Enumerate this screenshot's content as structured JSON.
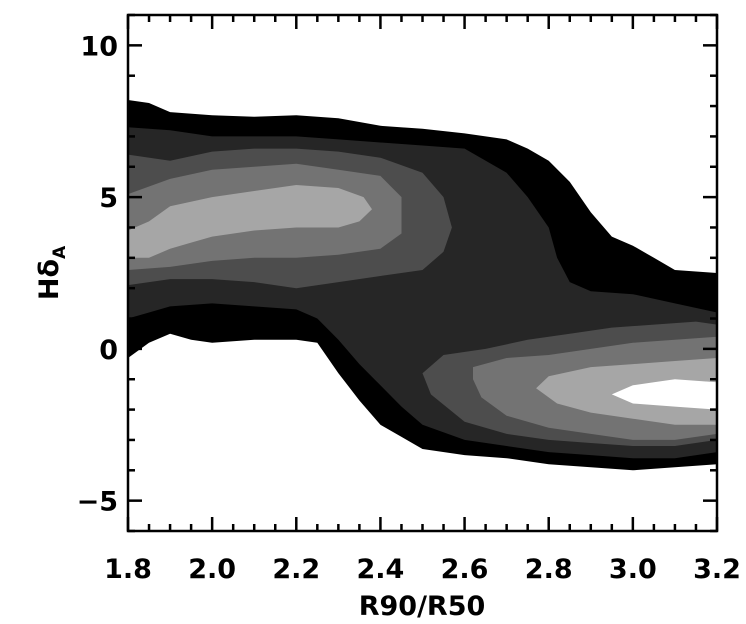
{
  "chart_data": {
    "type": "contour",
    "xlabel": "R90/R50",
    "ylabel": "Hδ",
    "ylabel_subscript": "A",
    "xlim": [
      1.8,
      3.2
    ],
    "ylim": [
      -6,
      11
    ],
    "x_ticks": [
      1.8,
      2.0,
      2.2,
      2.4,
      2.6,
      2.8,
      3.0,
      3.2
    ],
    "x_tick_labels": [
      "1.8",
      "2.0",
      "2.2",
      "2.4",
      "2.6",
      "2.8",
      "3.0",
      "3.2"
    ],
    "y_ticks": [
      -5,
      0,
      5,
      10
    ],
    "y_tick_labels": [
      "−5",
      "0",
      "5",
      "10"
    ],
    "levels": [
      {
        "level": 1,
        "color": "#000000",
        "polygon": [
          [
            1.8,
            8.2
          ],
          [
            1.85,
            8.1
          ],
          [
            1.9,
            7.8
          ],
          [
            2.0,
            7.7
          ],
          [
            2.1,
            7.65
          ],
          [
            2.2,
            7.7
          ],
          [
            2.3,
            7.6
          ],
          [
            2.4,
            7.35
          ],
          [
            2.5,
            7.25
          ],
          [
            2.6,
            7.1
          ],
          [
            2.7,
            6.9
          ],
          [
            2.75,
            6.6
          ],
          [
            2.8,
            6.2
          ],
          [
            2.85,
            5.5
          ],
          [
            2.9,
            4.5
          ],
          [
            2.95,
            3.7
          ],
          [
            3.0,
            3.4
          ],
          [
            3.05,
            3.0
          ],
          [
            3.1,
            2.6
          ],
          [
            3.2,
            2.5
          ],
          [
            3.2,
            -3.8
          ],
          [
            3.1,
            -3.9
          ],
          [
            3.0,
            -4.0
          ],
          [
            2.9,
            -3.9
          ],
          [
            2.8,
            -3.8
          ],
          [
            2.7,
            -3.6
          ],
          [
            2.6,
            -3.5
          ],
          [
            2.5,
            -3.3
          ],
          [
            2.45,
            -2.9
          ],
          [
            2.4,
            -2.5
          ],
          [
            2.35,
            -1.7
          ],
          [
            2.3,
            -0.8
          ],
          [
            2.25,
            0.2
          ],
          [
            2.2,
            0.3
          ],
          [
            2.1,
            0.3
          ],
          [
            2.0,
            0.2
          ],
          [
            1.95,
            0.3
          ],
          [
            1.9,
            0.5
          ],
          [
            1.85,
            0.2
          ],
          [
            1.8,
            -0.3
          ]
        ]
      },
      {
        "level": 2,
        "color": "#262626",
        "polygon": [
          [
            1.8,
            7.3
          ],
          [
            1.9,
            7.2
          ],
          [
            2.0,
            7.0
          ],
          [
            2.1,
            7.0
          ],
          [
            2.2,
            7.0
          ],
          [
            2.3,
            6.9
          ],
          [
            2.4,
            6.8
          ],
          [
            2.5,
            6.7
          ],
          [
            2.6,
            6.6
          ],
          [
            2.7,
            5.8
          ],
          [
            2.75,
            5.0
          ],
          [
            2.8,
            4.0
          ],
          [
            2.82,
            3.0
          ],
          [
            2.85,
            2.2
          ],
          [
            2.9,
            1.9
          ],
          [
            3.0,
            1.8
          ],
          [
            3.1,
            1.5
          ],
          [
            3.2,
            1.2
          ],
          [
            3.2,
            -3.4
          ],
          [
            3.1,
            -3.6
          ],
          [
            3.0,
            -3.6
          ],
          [
            2.9,
            -3.5
          ],
          [
            2.8,
            -3.4
          ],
          [
            2.7,
            -3.2
          ],
          [
            2.6,
            -3.0
          ],
          [
            2.5,
            -2.5
          ],
          [
            2.45,
            -1.9
          ],
          [
            2.4,
            -1.2
          ],
          [
            2.35,
            -0.5
          ],
          [
            2.3,
            0.3
          ],
          [
            2.25,
            1.0
          ],
          [
            2.2,
            1.3
          ],
          [
            2.1,
            1.4
          ],
          [
            2.0,
            1.5
          ],
          [
            1.9,
            1.4
          ],
          [
            1.85,
            1.2
          ],
          [
            1.8,
            1.0
          ]
        ]
      },
      {
        "level": 3,
        "color": "#4d4d4d",
        "polygon": [
          [
            1.8,
            6.4
          ],
          [
            1.9,
            6.2
          ],
          [
            2.0,
            6.5
          ],
          [
            2.1,
            6.6
          ],
          [
            2.2,
            6.6
          ],
          [
            2.3,
            6.5
          ],
          [
            2.4,
            6.3
          ],
          [
            2.5,
            5.8
          ],
          [
            2.55,
            5.0
          ],
          [
            2.57,
            4.0
          ],
          [
            2.55,
            3.2
          ],
          [
            2.5,
            2.6
          ],
          [
            2.4,
            2.4
          ],
          [
            2.3,
            2.2
          ],
          [
            2.2,
            2.0
          ],
          [
            2.1,
            2.2
          ],
          [
            2.0,
            2.3
          ],
          [
            1.9,
            2.3
          ],
          [
            1.8,
            2.1
          ]
        ]
      },
      {
        "level": 3,
        "color": "#4d4d4d",
        "polygon": [
          [
            2.55,
            -0.2
          ],
          [
            2.65,
            0.0
          ],
          [
            2.75,
            0.3
          ],
          [
            2.85,
            0.5
          ],
          [
            2.95,
            0.7
          ],
          [
            3.05,
            0.8
          ],
          [
            3.15,
            0.9
          ],
          [
            3.2,
            0.8
          ],
          [
            3.2,
            -3.0
          ],
          [
            3.1,
            -3.2
          ],
          [
            3.0,
            -3.2
          ],
          [
            2.9,
            -3.1
          ],
          [
            2.8,
            -3.0
          ],
          [
            2.7,
            -2.8
          ],
          [
            2.6,
            -2.4
          ],
          [
            2.52,
            -1.5
          ],
          [
            2.5,
            -0.8
          ]
        ]
      },
      {
        "level": 4,
        "color": "#737373",
        "polygon": [
          [
            1.8,
            5.1
          ],
          [
            1.9,
            5.6
          ],
          [
            2.0,
            5.9
          ],
          [
            2.1,
            6.0
          ],
          [
            2.2,
            6.1
          ],
          [
            2.3,
            5.9
          ],
          [
            2.4,
            5.7
          ],
          [
            2.45,
            5.0
          ],
          [
            2.45,
            3.8
          ],
          [
            2.4,
            3.3
          ],
          [
            2.3,
            3.1
          ],
          [
            2.2,
            3.0
          ],
          [
            2.1,
            3.0
          ],
          [
            2.0,
            2.9
          ],
          [
            1.9,
            2.7
          ],
          [
            1.8,
            2.6
          ]
        ]
      },
      {
        "level": 4,
        "color": "#737373",
        "polygon": [
          [
            2.62,
            -0.6
          ],
          [
            2.7,
            -0.3
          ],
          [
            2.8,
            -0.2
          ],
          [
            2.9,
            0.0
          ],
          [
            3.0,
            0.2
          ],
          [
            3.1,
            0.3
          ],
          [
            3.2,
            0.4
          ],
          [
            3.2,
            -2.8
          ],
          [
            3.1,
            -3.0
          ],
          [
            3.0,
            -3.0
          ],
          [
            2.9,
            -2.8
          ],
          [
            2.8,
            -2.6
          ],
          [
            2.7,
            -2.2
          ],
          [
            2.64,
            -1.6
          ],
          [
            2.62,
            -1.0
          ]
        ]
      },
      {
        "level": 5,
        "color": "#a6a6a6",
        "polygon": [
          [
            1.8,
            3.9
          ],
          [
            1.85,
            4.2
          ],
          [
            1.9,
            4.7
          ],
          [
            2.0,
            5.0
          ],
          [
            2.1,
            5.2
          ],
          [
            2.2,
            5.4
          ],
          [
            2.3,
            5.3
          ],
          [
            2.36,
            5.0
          ],
          [
            2.38,
            4.6
          ],
          [
            2.35,
            4.2
          ],
          [
            2.3,
            4.0
          ],
          [
            2.2,
            4.0
          ],
          [
            2.1,
            3.9
          ],
          [
            2.0,
            3.7
          ],
          [
            1.95,
            3.5
          ],
          [
            1.9,
            3.3
          ],
          [
            1.85,
            3.0
          ],
          [
            1.8,
            3.0
          ]
        ]
      },
      {
        "level": 5,
        "color": "#a6a6a6",
        "polygon": [
          [
            2.77,
            -1.3
          ],
          [
            2.8,
            -0.9
          ],
          [
            2.9,
            -0.6
          ],
          [
            3.0,
            -0.5
          ],
          [
            3.1,
            -0.4
          ],
          [
            3.2,
            -0.3
          ],
          [
            3.2,
            -2.5
          ],
          [
            3.1,
            -2.5
          ],
          [
            3.0,
            -2.3
          ],
          [
            2.9,
            -2.1
          ],
          [
            2.82,
            -1.8
          ]
        ]
      },
      {
        "level": 6,
        "color": "#ffffff",
        "polygon": [
          [
            2.95,
            -1.5
          ],
          [
            3.0,
            -1.2
          ],
          [
            3.1,
            -1.0
          ],
          [
            3.2,
            -1.1
          ],
          [
            3.2,
            -2.0
          ],
          [
            3.1,
            -1.9
          ],
          [
            3.0,
            -1.8
          ]
        ]
      }
    ]
  }
}
